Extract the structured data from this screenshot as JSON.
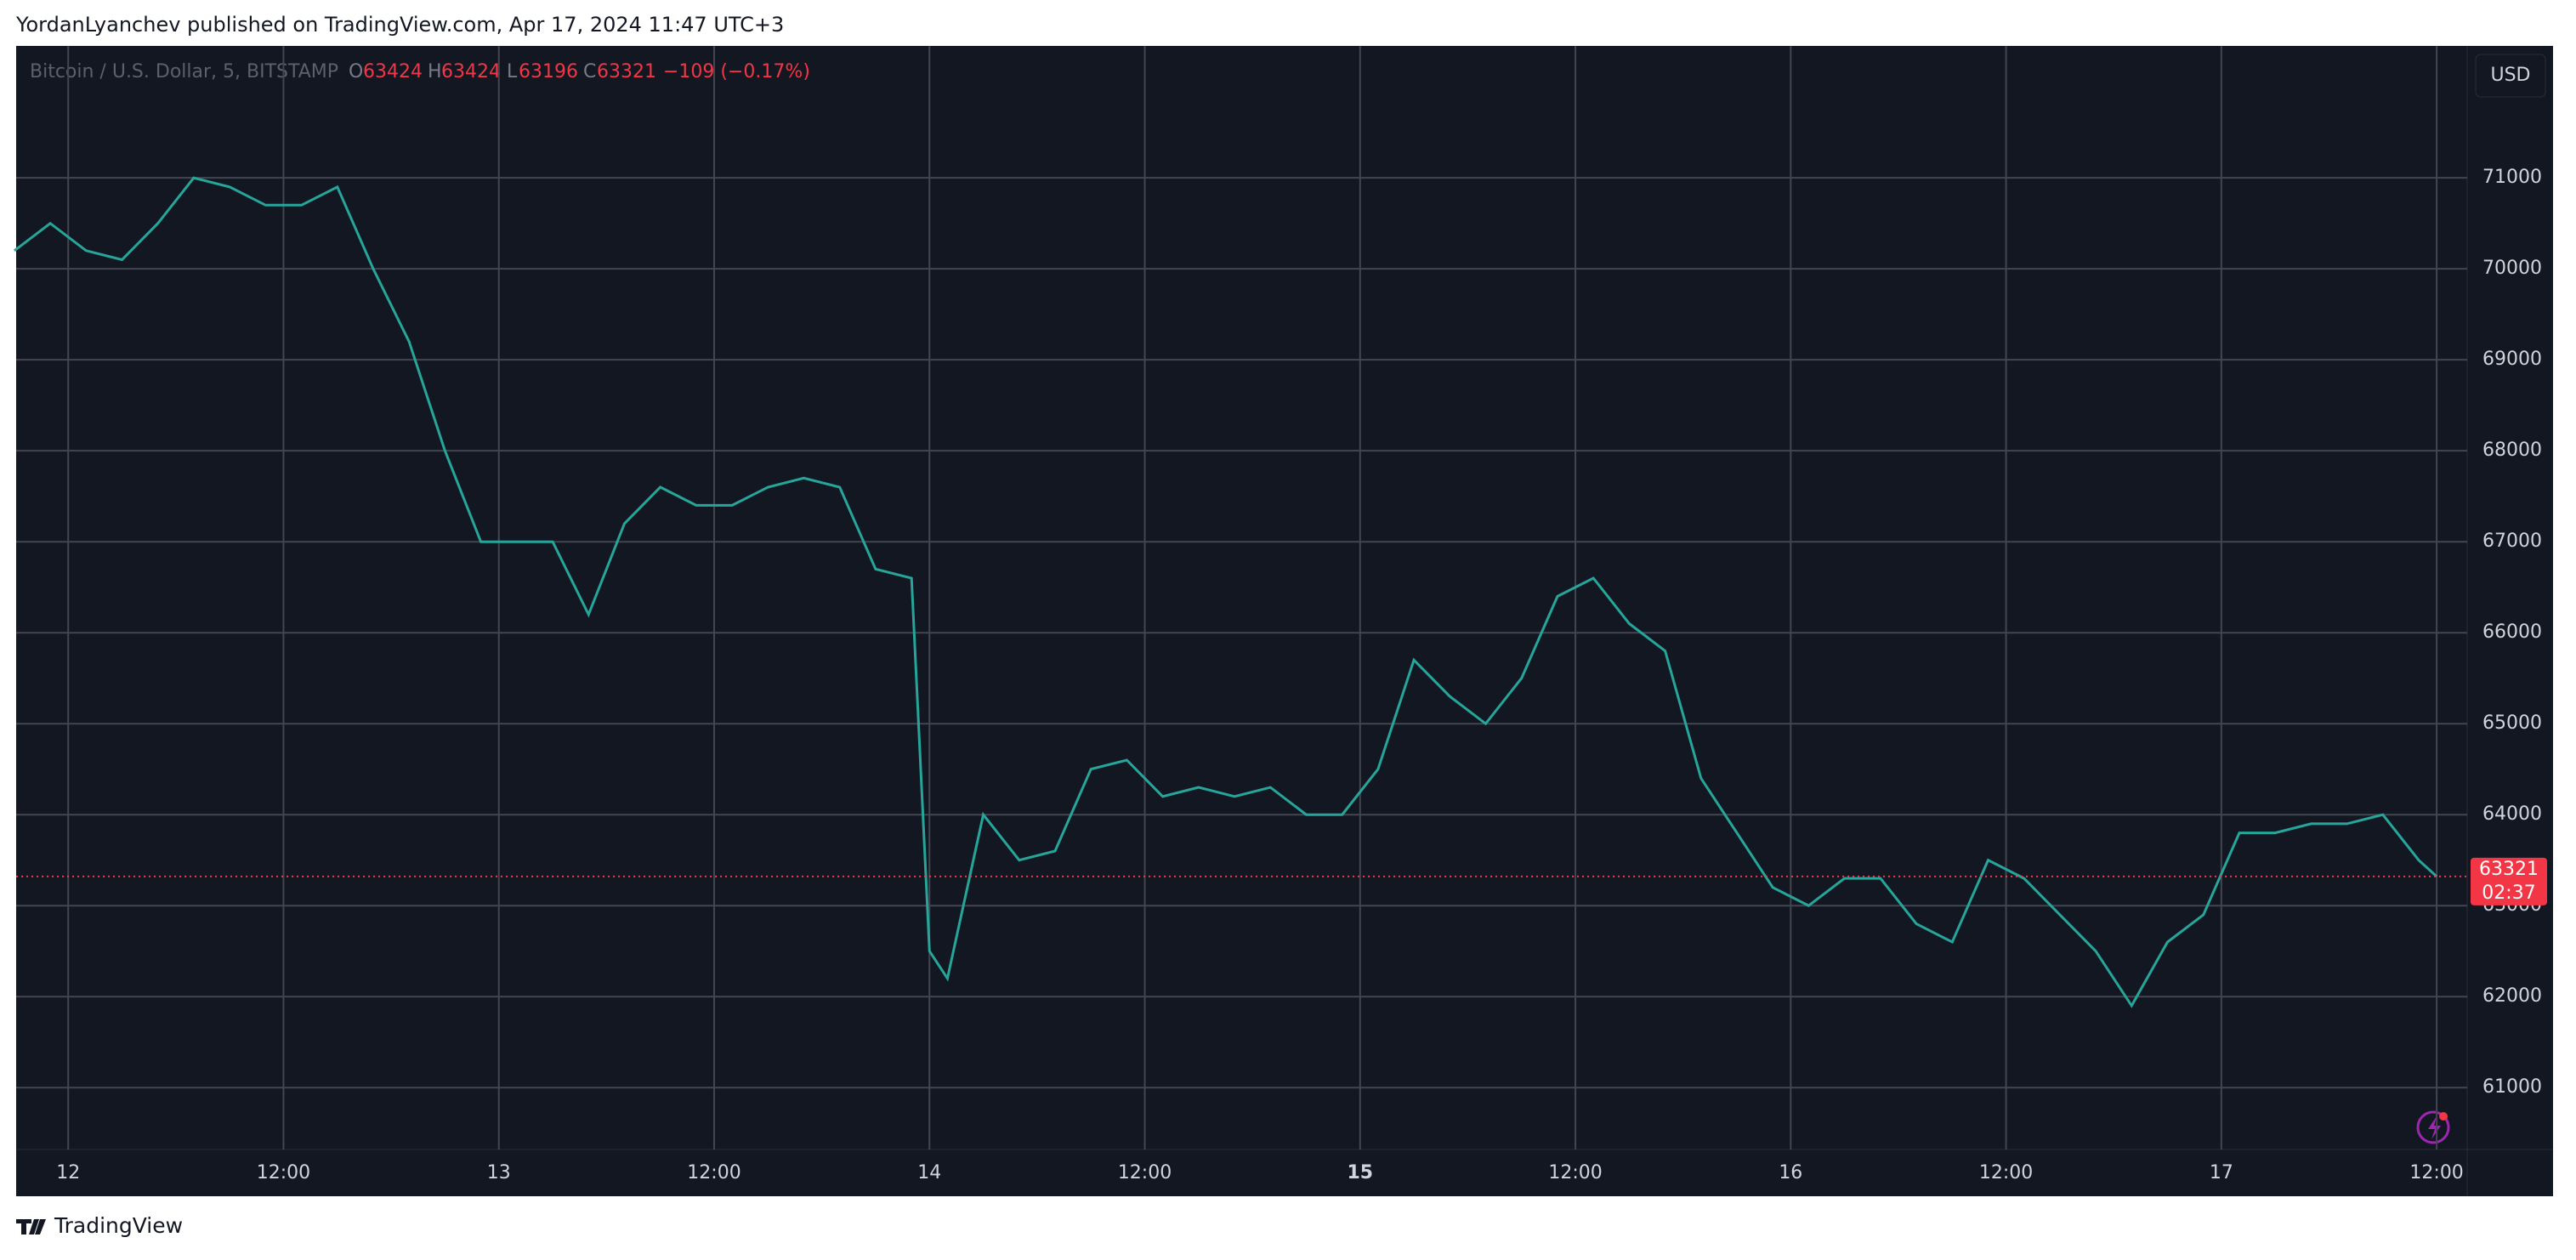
{
  "header": {
    "title": "YordanLyanchev published on TradingView.com, Apr 17, 2024 11:47 UTC+3"
  },
  "legend": {
    "symbol": "Bitcoin / U.S. Dollar, 5, BITSTAMP",
    "o_label": "O",
    "open": "63424",
    "h_label": "H",
    "high": "63424",
    "l_label": "L",
    "low": "63196",
    "c_label": "C",
    "close": "63321",
    "change": "−109 (−0.17%)"
  },
  "currency": "USD",
  "countdown": "02:37",
  "footer": "TradingView",
  "chart_data": {
    "type": "line",
    "color": "#26a69a",
    "x": [
      -3,
      -1,
      1,
      3,
      5,
      7,
      9,
      11,
      13,
      15,
      17,
      19,
      21,
      23,
      25,
      27,
      29,
      31,
      33,
      35,
      37,
      39,
      41,
      43,
      45,
      47,
      48,
      49,
      51,
      53,
      55,
      57,
      59,
      61,
      63,
      65,
      67,
      69,
      71,
      73,
      75,
      77,
      79,
      81,
      83,
      85,
      87,
      89,
      91,
      93,
      95,
      97,
      99,
      101,
      103,
      105,
      107,
      109,
      111,
      113,
      115,
      117,
      119,
      121,
      123,
      125,
      127,
      129,
      131,
      132
    ],
    "values": [
      70200,
      70500,
      70200,
      70100,
      70500,
      71000,
      70900,
      70700,
      70700,
      70900,
      70000,
      69200,
      68000,
      67000,
      67000,
      67000,
      66200,
      67200,
      67600,
      67400,
      67400,
      67600,
      67700,
      67600,
      66700,
      66600,
      62500,
      62200,
      64000,
      63500,
      63600,
      64500,
      64600,
      64200,
      64300,
      64200,
      64300,
      64000,
      64000,
      64500,
      65700,
      65300,
      65000,
      65500,
      66400,
      66600,
      66100,
      65800,
      64400,
      63800,
      63200,
      63000,
      63300,
      63300,
      62800,
      62600,
      63500,
      63300,
      62900,
      62500,
      61900,
      62600,
      62900,
      63800,
      63800,
      63900,
      63900,
      64000,
      63500,
      63321
    ],
    "last_price": {
      "value": 63321,
      "label": "63321"
    },
    "last_color": "#f23645",
    "xlim": [
      -2.9,
      133.7
    ],
    "ylim": [
      60320,
      72450
    ],
    "xticks": [
      {
        "value": 0,
        "label": "12"
      },
      {
        "value": 12,
        "label": "12:00"
      },
      {
        "value": 24,
        "label": "13"
      },
      {
        "value": 36,
        "label": "12:00"
      },
      {
        "value": 48,
        "label": "14"
      },
      {
        "value": 60,
        "label": "12:00"
      },
      {
        "value": 72,
        "label": "15"
      },
      {
        "value": 84,
        "label": "12:00"
      },
      {
        "value": 96,
        "label": "16"
      },
      {
        "value": 108,
        "label": "12:00"
      },
      {
        "value": 120,
        "label": "17"
      },
      {
        "value": 132,
        "label": "12:00"
      }
    ],
    "yticks": [
      61000,
      62000,
      63000,
      64000,
      65000,
      66000,
      67000,
      68000,
      69000,
      70000,
      71000
    ],
    "grid": true
  }
}
